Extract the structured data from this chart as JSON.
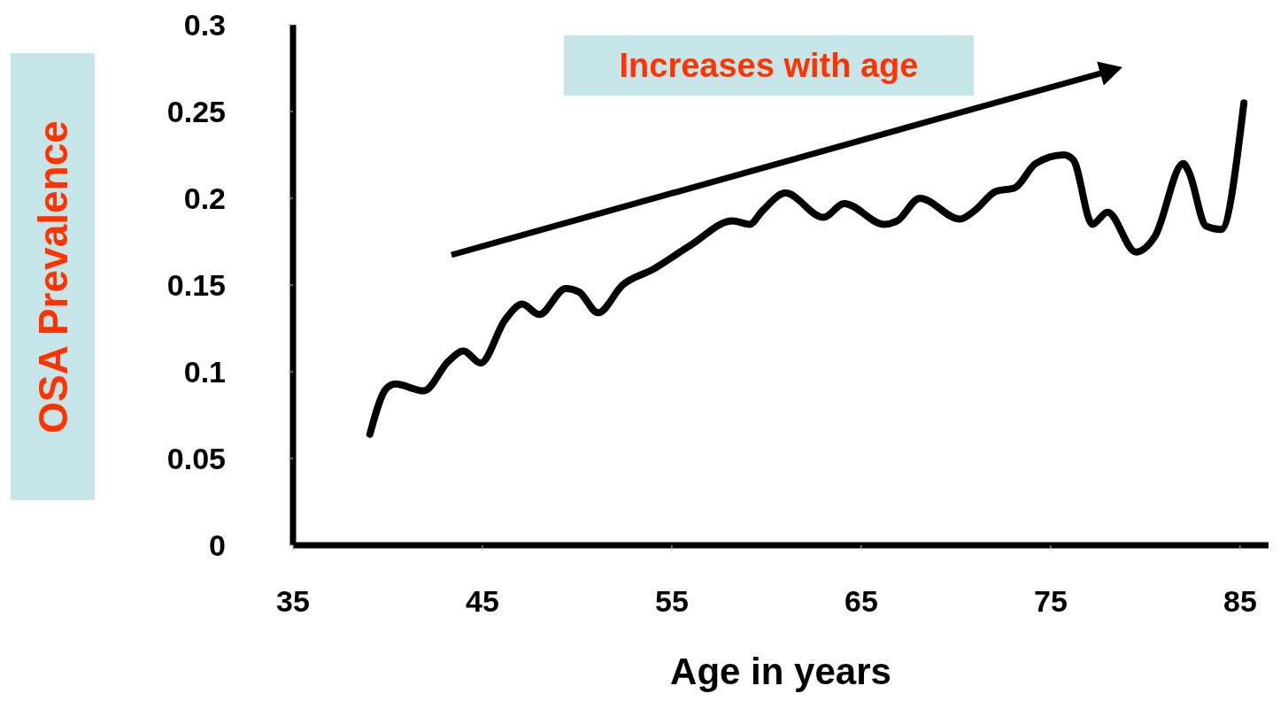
{
  "chart_data": {
    "type": "line",
    "xlabel": "Age in years",
    "ylabel": "OSA Prevalence",
    "annotations": [
      "Increases with age"
    ],
    "x": [
      39.06,
      39.9,
      40.4,
      41.9,
      43.2,
      44.0,
      44.9,
      46.2,
      47.1,
      48.0,
      49.4,
      50.1,
      51.1,
      52.4,
      54.0,
      56.0,
      58.2,
      59.1,
      59.8,
      61.0,
      63.0,
      64.1,
      66.2,
      66.9,
      68.1,
      70.2,
      71.0,
      72.1,
      73.1,
      74.2,
      75.7,
      76.2,
      77.2,
      78.0,
      79.5,
      80.5,
      82.0,
      82.3,
      83.2,
      84.0,
      85.2
    ],
    "values": [
      0.064,
      0.09,
      0.093,
      0.089,
      0.106,
      0.112,
      0.105,
      0.13,
      0.139,
      0.133,
      0.148,
      0.146,
      0.134,
      0.15,
      0.159,
      0.173,
      0.187,
      0.185,
      0.193,
      0.203,
      0.189,
      0.197,
      0.185,
      0.187,
      0.2,
      0.188,
      0.193,
      0.204,
      0.206,
      0.22,
      0.225,
      0.222,
      0.185,
      0.192,
      0.169,
      0.178,
      0.22,
      0.215,
      0.184,
      0.182,
      0.255
    ],
    "color": "#000000",
    "marker": "none",
    "line_style": "solid",
    "xlim": [
      35,
      86.5
    ],
    "xticks": [
      35,
      45,
      55,
      65,
      75,
      85
    ],
    "ylim": [
      0,
      0.3
    ],
    "yticks": [
      0,
      0.05,
      0.1,
      0.15,
      0.2,
      0.25,
      0.3
    ]
  }
}
